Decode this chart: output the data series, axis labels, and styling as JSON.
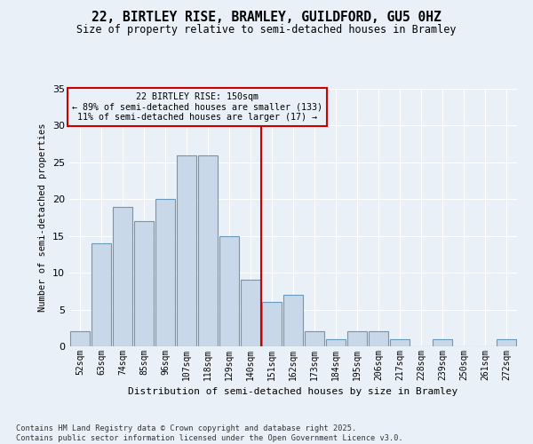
{
  "title": "22, BIRTLEY RISE, BRAMLEY, GUILDFORD, GU5 0HZ",
  "subtitle": "Size of property relative to semi-detached houses in Bramley",
  "xlabel": "Distribution of semi-detached houses by size in Bramley",
  "ylabel": "Number of semi-detached properties",
  "bins": [
    52,
    63,
    74,
    85,
    96,
    107,
    118,
    129,
    140,
    151,
    162,
    173,
    184,
    195,
    206,
    217,
    228,
    239,
    250,
    261,
    272
  ],
  "counts": [
    2,
    14,
    19,
    17,
    20,
    26,
    26,
    15,
    9,
    6,
    7,
    2,
    1,
    2,
    2,
    1,
    0,
    1,
    0,
    0,
    1
  ],
  "bar_color": "#c8d8e8",
  "bar_edge_color": "#6699bb",
  "vline_x": 151,
  "vline_color": "#cc0000",
  "annotation_title": "22 BIRTLEY RISE: 150sqm",
  "annotation_line1": "← 89% of semi-detached houses are smaller (133)",
  "annotation_line2": "11% of semi-detached houses are larger (17) →",
  "ylim": [
    0,
    35
  ],
  "yticks": [
    0,
    5,
    10,
    15,
    20,
    25,
    30,
    35
  ],
  "tick_labels": [
    "52sqm",
    "63sqm",
    "74sqm",
    "85sqm",
    "96sqm",
    "107sqm",
    "118sqm",
    "129sqm",
    "140sqm",
    "151sqm",
    "162sqm",
    "173sqm",
    "184sqm",
    "195sqm",
    "206sqm",
    "217sqm",
    "228sqm",
    "239sqm",
    "250sqm",
    "261sqm",
    "272sqm"
  ],
  "background_color": "#eaf0f8",
  "grid_color": "#ffffff",
  "footer1": "Contains HM Land Registry data © Crown copyright and database right 2025.",
  "footer2": "Contains public sector information licensed under the Open Government Licence v3.0."
}
